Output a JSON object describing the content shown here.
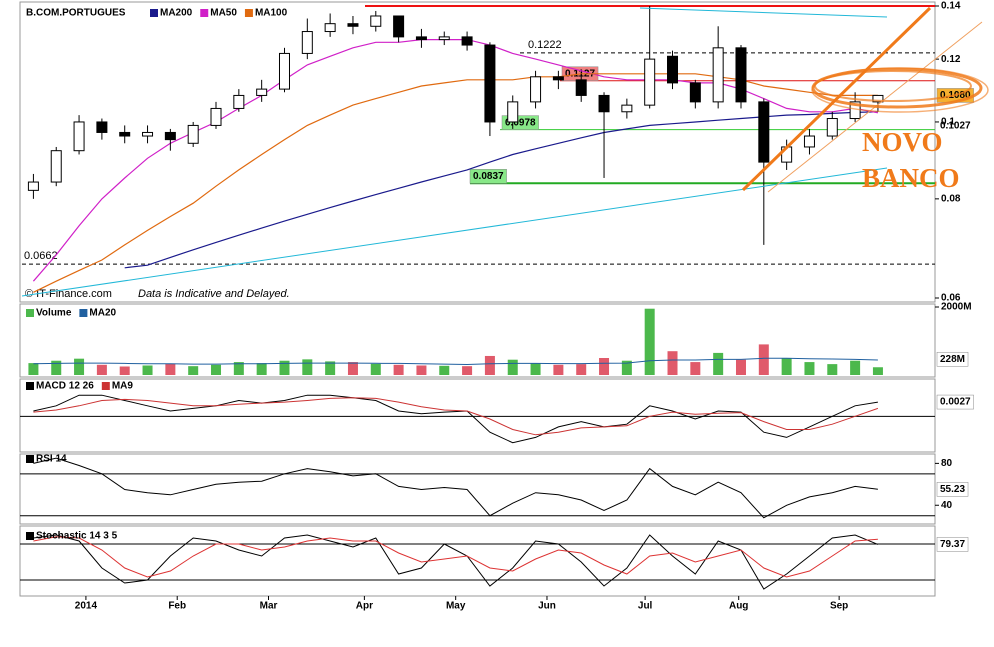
{
  "chart_data": [
    {
      "type": "candlestick",
      "title": "B.COM.PORTUGUES",
      "categories": [
        null,
        null,
        null,
        null,
        null,
        null,
        null,
        null,
        null,
        null,
        null,
        null,
        null,
        null,
        null,
        null,
        null,
        null,
        null,
        null,
        null,
        null,
        null,
        null,
        null,
        null,
        null,
        null,
        null,
        null,
        null,
        null,
        null,
        null,
        null,
        null,
        null,
        null
      ],
      "open": [
        0.082,
        0.084,
        0.092,
        0.1,
        0.097,
        0.096,
        0.097,
        0.094,
        0.099,
        0.104,
        0.108,
        0.11,
        0.122,
        0.13,
        0.133,
        0.132,
        0.136,
        0.128,
        0.127,
        0.128,
        0.125,
        0.1,
        0.106,
        0.114,
        0.113,
        0.108,
        0.103,
        0.105,
        0.121,
        0.112,
        0.106,
        0.124,
        0.106,
        0.089,
        0.093,
        0.096,
        0.101,
        0.106
      ],
      "high": [
        0.086,
        0.093,
        0.102,
        0.101,
        0.099,
        0.099,
        0.098,
        0.1,
        0.106,
        0.11,
        0.113,
        0.124,
        0.135,
        0.137,
        0.136,
        0.138,
        0.136,
        0.131,
        0.13,
        0.13,
        0.126,
        0.108,
        0.116,
        0.116,
        0.115,
        0.109,
        0.107,
        0.14,
        0.123,
        0.113,
        0.132,
        0.125,
        0.107,
        0.095,
        0.098,
        0.103,
        0.109,
        0.108
      ],
      "low": [
        0.08,
        0.083,
        0.091,
        0.095,
        0.094,
        0.094,
        0.092,
        0.093,
        0.098,
        0.103,
        0.106,
        0.109,
        0.12,
        0.128,
        0.129,
        0.13,
        0.126,
        0.124,
        0.125,
        0.123,
        0.096,
        0.098,
        0.104,
        0.11,
        0.106,
        0.085,
        0.101,
        0.104,
        0.11,
        0.104,
        0.104,
        0.104,
        0.07,
        0.087,
        0.091,
        0.095,
        0.1,
        0.103
      ],
      "close": [
        0.084,
        0.092,
        0.1,
        0.097,
        0.096,
        0.097,
        0.095,
        0.099,
        0.104,
        0.108,
        0.11,
        0.122,
        0.13,
        0.133,
        0.132,
        0.136,
        0.128,
        0.127,
        0.128,
        0.125,
        0.1,
        0.106,
        0.114,
        0.113,
        0.108,
        0.103,
        0.105,
        0.12,
        0.112,
        0.106,
        0.124,
        0.106,
        0.089,
        0.093,
        0.096,
        0.101,
        0.106,
        0.108
      ],
      "series": [
        {
          "name": "MA200",
          "color": "#1a1a8c",
          "values": [
            null,
            null,
            null,
            null,
            0.0655,
            0.066,
            0.0675,
            0.069,
            0.0705,
            0.072,
            0.0735,
            0.075,
            0.0765,
            0.078,
            0.0795,
            0.081,
            0.0825,
            0.084,
            0.0855,
            0.087,
            0.089,
            0.091,
            0.0925,
            0.094,
            0.0955,
            0.097,
            0.098,
            0.099,
            0.0995,
            0.1,
            0.1005,
            0.101,
            0.1015,
            0.102,
            0.1022,
            0.1025,
            0.1028,
            0.103
          ]
        },
        {
          "name": "MA50",
          "color": "#d020c8",
          "values": [
            0.063,
            0.068,
            0.074,
            0.08,
            0.085,
            0.09,
            0.094,
            0.097,
            0.1,
            0.104,
            0.108,
            0.113,
            0.118,
            0.121,
            0.124,
            0.126,
            0.126,
            0.127,
            0.127,
            0.127,
            0.125,
            0.122,
            0.12,
            0.118,
            0.116,
            0.114,
            0.113,
            0.113,
            0.113,
            0.112,
            0.112,
            0.11,
            0.107,
            0.104,
            0.103,
            0.103,
            0.104,
            0.1027
          ]
        },
        {
          "name": "MA100",
          "color": "#e06a10",
          "values": [
            0.061,
            0.063,
            0.065,
            0.067,
            0.07,
            0.073,
            0.076,
            0.079,
            0.083,
            0.087,
            0.091,
            0.095,
            0.099,
            0.102,
            0.105,
            0.107,
            0.109,
            0.111,
            0.112,
            0.113,
            0.113,
            0.113,
            0.114,
            0.114,
            0.115,
            0.115,
            0.115,
            0.115,
            0.115,
            0.115,
            0.114,
            0.113,
            0.111,
            0.11,
            0.109,
            0.108,
            0.108,
            0.108
          ]
        }
      ],
      "last_price": {
        "value": 0.108,
        "label": "0.1080"
      },
      "ylim": [
        0.06,
        0.14
      ],
      "yticks": [
        0.06,
        0.08,
        0.1,
        0.12,
        0.14
      ],
      "log_scale": true,
      "xlim": [
        -0.5,
        39.5
      ],
      "xticks": [
        {
          "value": 2.3,
          "label": "2014"
        },
        {
          "value": 6.3,
          "label": "Feb"
        },
        {
          "value": 10.3,
          "label": "Mar"
        },
        {
          "value": 14.5,
          "label": "Apr"
        },
        {
          "value": 18.5,
          "label": "May"
        },
        {
          "value": 22.5,
          "label": "Jun"
        },
        {
          "value": 26.8,
          "label": "Jul"
        },
        {
          "value": 30.9,
          "label": "Aug"
        },
        {
          "value": 35.3,
          "label": "Sep"
        }
      ],
      "levels": [
        {
          "value": 0.1222,
          "color": "#000000",
          "dash": true
        },
        {
          "value": 0.1127,
          "color": "#dd1111",
          "dash": false
        },
        {
          "value": 0.0978,
          "color": "#33cc33",
          "dash": false
        },
        {
          "value": 0.0837,
          "color": "#22aa22",
          "dash": false
        },
        {
          "value": 0.0662,
          "color": "#000000",
          "dash": true
        },
        {
          "value": 0.14,
          "color": "#ee1111",
          "dash": false
        }
      ],
      "annotation": [
        "NOVO",
        "BANCO"
      ],
      "source": "© IT-Finance.com",
      "note": "Data is Indicative and Delayed."
    },
    {
      "type": "bar",
      "series": [
        {
          "name": "Volume",
          "color": "#4cb84c",
          "values": [
            350,
            420,
            480,
            300,
            250,
            280,
            330,
            260,
            300,
            380,
            350,
            420,
            460,
            400,
            380,
            330,
            300,
            280,
            270,
            260,
            560,
            450,
            350,
            300,
            320,
            500,
            420,
            1950,
            700,
            380,
            650,
            450,
            900,
            500,
            380,
            320,
            420,
            228
          ]
        },
        {
          "name": "MA20",
          "color": "#2060a0",
          "values": [
            330,
            340,
            350,
            350,
            340,
            330,
            330,
            320,
            320,
            330,
            330,
            340,
            350,
            350,
            350,
            345,
            340,
            330,
            320,
            310,
            330,
            340,
            340,
            335,
            335,
            345,
            350,
            420,
            440,
            440,
            460,
            460,
            490,
            490,
            480,
            470,
            460,
            440
          ]
        }
      ],
      "down_color": "#e05a6a",
      "last": {
        "value": 228,
        "label": "228M"
      },
      "ylim": [
        0,
        2000
      ],
      "yticks": [
        {
          "value": 2000,
          "label": "2000M"
        }
      ]
    },
    {
      "type": "line",
      "series": [
        {
          "name": "MACD 12 26",
          "color": "#000000",
          "values": [
            0.001,
            0.002,
            0.004,
            0.004,
            0.003,
            0.002,
            0.001,
            0.0015,
            0.002,
            0.003,
            0.0025,
            0.003,
            0.004,
            0.004,
            0.0035,
            0.003,
            0.001,
            0.0005,
            0.0008,
            0.001,
            -0.003,
            -0.005,
            -0.004,
            -0.002,
            -0.001,
            -0.002,
            -0.0015,
            0.002,
            0.001,
            -0.0005,
            0.001,
            0.0008,
            -0.003,
            -0.004,
            -0.002,
            0,
            0.002,
            0.0027
          ]
        },
        {
          "name": "MA9",
          "color": "#cc3333",
          "values": [
            0.0008,
            0.0012,
            0.002,
            0.003,
            0.0032,
            0.003,
            0.0025,
            0.002,
            0.002,
            0.0023,
            0.0025,
            0.0027,
            0.003,
            0.0034,
            0.0035,
            0.0034,
            0.0027,
            0.0018,
            0.0012,
            0.001,
            -0.0005,
            -0.0025,
            -0.0035,
            -0.003,
            -0.0022,
            -0.002,
            -0.0018,
            0,
            0.0008,
            0.0004,
            0.0006,
            0.0007,
            -0.001,
            -0.0025,
            -0.0025,
            -0.0015,
            0,
            0.0015
          ]
        }
      ],
      "ylim": [
        -0.006,
        0.0065
      ],
      "levels": [
        0
      ]
    },
    {
      "type": "line",
      "series": [
        {
          "name": "RSI 14",
          "color": "#000000",
          "values": [
            80,
            85,
            78,
            70,
            55,
            52,
            50,
            55,
            60,
            62,
            63,
            70,
            75,
            72,
            68,
            70,
            58,
            55,
            57,
            55,
            30,
            42,
            52,
            50,
            45,
            35,
            45,
            75,
            58,
            50,
            62,
            52,
            28,
            40,
            48,
            52,
            58,
            55.23
          ]
        }
      ],
      "ylim": [
        24,
        88
      ],
      "yticks": [
        40,
        80
      ],
      "levels": [
        30,
        70
      ]
    },
    {
      "type": "line",
      "series": [
        {
          "name": "Stochastic 14 3 5",
          "color": "#000000",
          "values": [
            90,
            95,
            85,
            40,
            15,
            20,
            60,
            90,
            85,
            70,
            60,
            90,
            95,
            85,
            75,
            90,
            30,
            40,
            80,
            60,
            10,
            40,
            85,
            80,
            50,
            10,
            40,
            95,
            60,
            30,
            85,
            70,
            5,
            30,
            60,
            90,
            95,
            79.37
          ]
        },
        {
          "color": "#dd3333",
          "values": [
            85,
            92,
            90,
            70,
            40,
            25,
            35,
            60,
            80,
            80,
            70,
            75,
            85,
            90,
            85,
            85,
            65,
            50,
            55,
            60,
            40,
            35,
            55,
            70,
            65,
            45,
            30,
            60,
            65,
            50,
            60,
            70,
            40,
            25,
            35,
            60,
            85,
            88
          ]
        }
      ],
      "ylim": [
        0,
        100
      ],
      "levels": [
        20,
        80
      ]
    }
  ]
}
